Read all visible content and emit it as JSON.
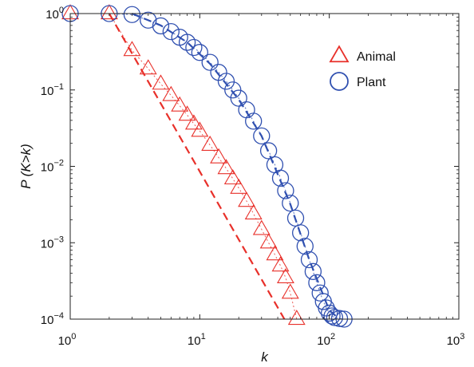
{
  "chart_data": {
    "type": "scatter",
    "xscale": "log",
    "yscale": "log",
    "xlim": [
      1,
      1000
    ],
    "ylim": [
      0.0001,
      1
    ],
    "xlabel": "k",
    "ylabel": "P (K>k)",
    "x_ticks": [
      {
        "value": 1,
        "base": "10",
        "exp": "0"
      },
      {
        "value": 10,
        "base": "10",
        "exp": "1"
      },
      {
        "value": 100,
        "base": "10",
        "exp": "2"
      },
      {
        "value": 1000,
        "base": "10",
        "exp": "3"
      }
    ],
    "y_ticks": [
      {
        "value": 1,
        "base": "10",
        "exp": "0"
      },
      {
        "value": 0.1,
        "base": "10",
        "exp": "−1"
      },
      {
        "value": 0.01,
        "base": "10",
        "exp": "−2"
      },
      {
        "value": 0.001,
        "base": "10",
        "exp": "−3"
      },
      {
        "value": 0.0001,
        "base": "10",
        "exp": "−4"
      }
    ],
    "grid": false,
    "legend_position": "top-right",
    "series": [
      {
        "name": "Animal",
        "marker": "triangle",
        "color": "#e8302a",
        "x": [
          1,
          2,
          3,
          4,
          5,
          6,
          7,
          8,
          9,
          10,
          12,
          14,
          16,
          18,
          20,
          23,
          26,
          30,
          34,
          38,
          42,
          46,
          50,
          56
        ],
        "y": [
          1,
          1,
          0.33,
          0.19,
          0.12,
          0.085,
          0.062,
          0.047,
          0.036,
          0.029,
          0.019,
          0.013,
          0.0094,
          0.0069,
          0.0052,
          0.0035,
          0.0024,
          0.0015,
          0.001,
          0.0007,
          0.0005,
          0.00035,
          0.00022,
          0.0001
        ],
        "fit": {
          "x": [
            2,
            45
          ],
          "y": [
            1,
            0.0001
          ]
        }
      },
      {
        "name": "Plant",
        "marker": "circle",
        "color": "#3050b0",
        "x": [
          1,
          2,
          3,
          4,
          5,
          6,
          7,
          8,
          9,
          10,
          12,
          14,
          16,
          18,
          20,
          23,
          26,
          30,
          34,
          38,
          42,
          46,
          50,
          55,
          60,
          65,
          70,
          75,
          80,
          85,
          90,
          95,
          100,
          105,
          110,
          120,
          130
        ],
        "y": [
          1,
          1,
          0.97,
          0.82,
          0.69,
          0.58,
          0.49,
          0.42,
          0.36,
          0.31,
          0.23,
          0.17,
          0.13,
          0.1,
          0.078,
          0.055,
          0.039,
          0.025,
          0.016,
          0.0105,
          0.007,
          0.0048,
          0.0033,
          0.0021,
          0.00135,
          0.0009,
          0.0006,
          0.00042,
          0.0003,
          0.00022,
          0.00017,
          0.00014,
          0.00012,
          0.00011,
          0.000105,
          0.000102,
          0.0001
        ],
        "fit": {
          "x": [
            3,
            5,
            8,
            12,
            20,
            30,
            50,
            70,
            100,
            120
          ],
          "y": [
            1,
            0.7,
            0.42,
            0.22,
            0.075,
            0.025,
            0.0032,
            0.0006,
            0.00013,
            0.0001
          ]
        }
      }
    ]
  }
}
